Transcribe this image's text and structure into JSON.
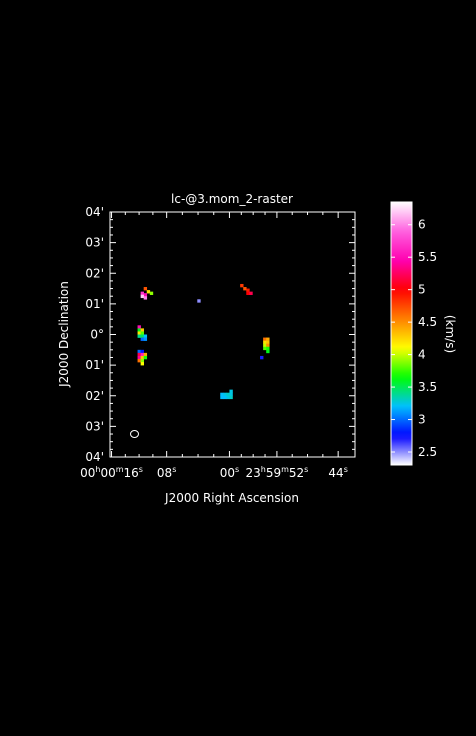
{
  "chart_data": {
    "type": "heatmap",
    "title": "lc-@3.mom_2-raster",
    "xlabel": "J2000 Right Ascension",
    "ylabel": "J2000 Declination",
    "colorbar_label": "(km/s)",
    "colorbar_range": [
      2.3,
      6.35
    ],
    "colorbar_ticks": [
      "2.5",
      "3",
      "3.5",
      "4",
      "4.5",
      "5",
      "5.5",
      "6"
    ],
    "colorbar_colors": [
      "#ffffff",
      "#0000ff",
      "#00bfff",
      "#00ff00",
      "#ffff00",
      "#ff8000",
      "#ff0000",
      "#ff00b0",
      "#ff60e0",
      "#ffffff"
    ],
    "xlim_arcmin": [
      -4.0,
      4.0
    ],
    "ylim_arcmin": [
      -4.0,
      4.0
    ],
    "x_ticks": [
      {
        "offset": -3.95,
        "hms": [
          "00",
          "00",
          "16"
        ]
      },
      {
        "offset": -2.15,
        "s": "08"
      },
      {
        "offset": -0.1,
        "s": "00"
      },
      {
        "offset": 1.45,
        "hms": [
          "23",
          "59",
          "52"
        ]
      },
      {
        "offset": 3.45,
        "s": "44"
      }
    ],
    "y_ticks": [
      {
        "offset": 4,
        "label": "04'"
      },
      {
        "offset": 3,
        "label": "03'"
      },
      {
        "offset": 2,
        "label": "02'"
      },
      {
        "offset": 1,
        "label": "01'"
      },
      {
        "offset": 0,
        "label": "0°"
      },
      {
        "offset": -1,
        "label": "01'"
      },
      {
        "offset": -2,
        "label": "02'"
      },
      {
        "offset": -3,
        "label": "03'"
      },
      {
        "offset": -4,
        "label": "04'"
      }
    ],
    "beam": {
      "x": -3.2,
      "y": -3.25
    },
    "pixels": [
      {
        "x": -2.85,
        "y": 1.5,
        "v": 4.7
      },
      {
        "x": -2.75,
        "y": 1.4,
        "v": 4.2
      },
      {
        "x": -2.65,
        "y": 1.35,
        "v": 3.9
      },
      {
        "x": -2.95,
        "y": 1.35,
        "v": 5.7
      },
      {
        "x": -2.85,
        "y": 1.3,
        "v": 5.5
      },
      {
        "x": -2.95,
        "y": 1.25,
        "v": 6.2
      },
      {
        "x": -2.85,
        "y": 1.2,
        "v": 6.0
      },
      {
        "x": -3.05,
        "y": 0.25,
        "v": 5.5
      },
      {
        "x": -3.05,
        "y": 0.15,
        "v": 3.6
      },
      {
        "x": -2.95,
        "y": 0.15,
        "v": 4.3
      },
      {
        "x": -3.05,
        "y": 0.05,
        "v": 4.2
      },
      {
        "x": -2.95,
        "y": 0.05,
        "v": 3.8
      },
      {
        "x": -3.05,
        "y": -0.05,
        "v": 3.4
      },
      {
        "x": -2.95,
        "y": -0.05,
        "v": 3.5
      },
      {
        "x": -2.85,
        "y": -0.05,
        "v": 3.2
      },
      {
        "x": -2.95,
        "y": -0.15,
        "v": 3.0
      },
      {
        "x": -2.85,
        "y": -0.15,
        "v": 3.1
      },
      {
        "x": -3.05,
        "y": -0.55,
        "v": 3.0
      },
      {
        "x": -2.95,
        "y": -0.55,
        "v": 2.8
      },
      {
        "x": -3.05,
        "y": -0.65,
        "v": 5.2
      },
      {
        "x": -2.95,
        "y": -0.65,
        "v": 5.6
      },
      {
        "x": -2.85,
        "y": -0.65,
        "v": 4.4
      },
      {
        "x": -3.05,
        "y": -0.75,
        "v": 5.4
      },
      {
        "x": -2.95,
        "y": -0.75,
        "v": 4.3
      },
      {
        "x": -2.85,
        "y": -0.75,
        "v": 3.7
      },
      {
        "x": -3.05,
        "y": -0.85,
        "v": 4.6
      },
      {
        "x": -2.95,
        "y": -0.85,
        "v": 3.9
      },
      {
        "x": -2.95,
        "y": -0.95,
        "v": 4.1
      },
      {
        "x": -1.1,
        "y": 1.1,
        "v": 2.5
      },
      {
        "x": 0.3,
        "y": 1.6,
        "v": 4.8
      },
      {
        "x": 0.4,
        "y": 1.5,
        "v": 4.7
      },
      {
        "x": 0.5,
        "y": 1.45,
        "v": 4.9
      },
      {
        "x": 0.5,
        "y": 1.35,
        "v": 5.0
      },
      {
        "x": 0.6,
        "y": 1.35,
        "v": 5.2
      },
      {
        "x": 1.05,
        "y": -0.15,
        "v": 4.6
      },
      {
        "x": 1.15,
        "y": -0.15,
        "v": 4.4
      },
      {
        "x": 1.05,
        "y": -0.25,
        "v": 4.2
      },
      {
        "x": 1.15,
        "y": -0.25,
        "v": 4.3
      },
      {
        "x": 1.05,
        "y": -0.35,
        "v": 4.0
      },
      {
        "x": 1.15,
        "y": -0.35,
        "v": 4.5
      },
      {
        "x": 1.05,
        "y": -0.45,
        "v": 3.8
      },
      {
        "x": 1.15,
        "y": -0.45,
        "v": 3.7
      },
      {
        "x": 1.15,
        "y": -0.55,
        "v": 3.6
      },
      {
        "x": 0.95,
        "y": -0.75,
        "v": 2.7
      },
      {
        "x": -0.05,
        "y": -1.85,
        "v": 3.25
      },
      {
        "x": -0.35,
        "y": -1.95,
        "v": 3.2
      },
      {
        "x": -0.25,
        "y": -1.95,
        "v": 3.25
      },
      {
        "x": -0.15,
        "y": -1.95,
        "v": 3.3
      },
      {
        "x": -0.05,
        "y": -1.95,
        "v": 3.25
      },
      {
        "x": -0.35,
        "y": -2.05,
        "v": 3.2
      },
      {
        "x": -0.25,
        "y": -2.05,
        "v": 3.2
      },
      {
        "x": -0.15,
        "y": -2.05,
        "v": 3.25
      },
      {
        "x": -0.05,
        "y": -2.05,
        "v": 3.3
      }
    ]
  }
}
